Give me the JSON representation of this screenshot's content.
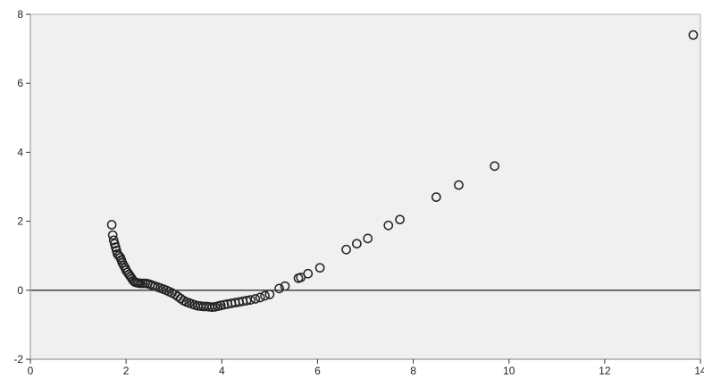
{
  "chart_data": {
    "type": "scatter",
    "title": "",
    "xlabel": "",
    "ylabel": "",
    "xlim": [
      0,
      14
    ],
    "ylim": [
      -2,
      8
    ],
    "x_ticks": [
      {
        "value": 0,
        "label": "0"
      },
      {
        "value": 2,
        "label": "2"
      },
      {
        "value": 4,
        "label": "4"
      },
      {
        "value": 6,
        "label": "6"
      },
      {
        "value": 8,
        "label": "8"
      },
      {
        "value": 10,
        "label": "10"
      },
      {
        "value": 12,
        "label": "12"
      },
      {
        "value": 14,
        "label": "14"
      }
    ],
    "y_ticks": [
      {
        "value": -2,
        "label": "-2"
      },
      {
        "value": 0,
        "label": "0"
      },
      {
        "value": 2,
        "label": "2"
      },
      {
        "value": 4,
        "label": "4"
      },
      {
        "value": 6,
        "label": "6"
      },
      {
        "value": 8,
        "label": "8"
      }
    ],
    "reference_line_y": 0,
    "grid": false,
    "marker": "open-circle",
    "colors": {
      "plot_background": "#f0f0f0",
      "marker_stroke": "#222222",
      "axis": "#333333",
      "reference_line": "#333333"
    },
    "points": [
      {
        "x": 1.7,
        "y": 1.9
      },
      {
        "x": 1.72,
        "y": 1.6
      },
      {
        "x": 1.74,
        "y": 1.45
      },
      {
        "x": 1.76,
        "y": 1.35
      },
      {
        "x": 1.78,
        "y": 1.25
      },
      {
        "x": 1.8,
        "y": 1.15
      },
      {
        "x": 1.82,
        "y": 1.05
      },
      {
        "x": 1.85,
        "y": 1.0
      },
      {
        "x": 1.88,
        "y": 0.95
      },
      {
        "x": 1.9,
        "y": 0.88
      },
      {
        "x": 1.92,
        "y": 0.8
      },
      {
        "x": 1.95,
        "y": 0.72
      },
      {
        "x": 1.98,
        "y": 0.65
      },
      {
        "x": 2.0,
        "y": 0.58
      },
      {
        "x": 2.03,
        "y": 0.52
      },
      {
        "x": 2.06,
        "y": 0.46
      },
      {
        "x": 2.09,
        "y": 0.4
      },
      {
        "x": 2.12,
        "y": 0.34
      },
      {
        "x": 2.15,
        "y": 0.28
      },
      {
        "x": 2.18,
        "y": 0.24
      },
      {
        "x": 2.22,
        "y": 0.22
      },
      {
        "x": 2.26,
        "y": 0.21
      },
      {
        "x": 2.3,
        "y": 0.2
      },
      {
        "x": 2.35,
        "y": 0.2
      },
      {
        "x": 2.4,
        "y": 0.2
      },
      {
        "x": 2.45,
        "y": 0.19
      },
      {
        "x": 2.5,
        "y": 0.17
      },
      {
        "x": 2.55,
        "y": 0.14
      },
      {
        "x": 2.6,
        "y": 0.12
      },
      {
        "x": 2.66,
        "y": 0.09
      },
      {
        "x": 2.72,
        "y": 0.06
      },
      {
        "x": 2.78,
        "y": 0.03
      },
      {
        "x": 2.84,
        "y": 0.0
      },
      {
        "x": 2.9,
        "y": -0.04
      },
      {
        "x": 2.96,
        "y": -0.08
      },
      {
        "x": 3.02,
        "y": -0.12
      },
      {
        "x": 3.08,
        "y": -0.18
      },
      {
        "x": 3.14,
        "y": -0.24
      },
      {
        "x": 3.2,
        "y": -0.3
      },
      {
        "x": 3.26,
        "y": -0.34
      },
      {
        "x": 3.32,
        "y": -0.37
      },
      {
        "x": 3.38,
        "y": -0.4
      },
      {
        "x": 3.44,
        "y": -0.43
      },
      {
        "x": 3.5,
        "y": -0.45
      },
      {
        "x": 3.56,
        "y": -0.46
      },
      {
        "x": 3.62,
        "y": -0.47
      },
      {
        "x": 3.68,
        "y": -0.47
      },
      {
        "x": 3.74,
        "y": -0.48
      },
      {
        "x": 3.8,
        "y": -0.49
      },
      {
        "x": 3.86,
        "y": -0.48
      },
      {
        "x": 3.92,
        "y": -0.46
      },
      {
        "x": 3.98,
        "y": -0.44
      },
      {
        "x": 4.05,
        "y": -0.42
      },
      {
        "x": 4.12,
        "y": -0.4
      },
      {
        "x": 4.2,
        "y": -0.38
      },
      {
        "x": 4.28,
        "y": -0.36
      },
      {
        "x": 4.36,
        "y": -0.34
      },
      {
        "x": 4.44,
        "y": -0.32
      },
      {
        "x": 4.52,
        "y": -0.3
      },
      {
        "x": 4.6,
        "y": -0.28
      },
      {
        "x": 4.7,
        "y": -0.25
      },
      {
        "x": 4.8,
        "y": -0.21
      },
      {
        "x": 4.9,
        "y": -0.16
      },
      {
        "x": 5.0,
        "y": -0.12
      },
      {
        "x": 5.2,
        "y": 0.05
      },
      {
        "x": 5.32,
        "y": 0.12
      },
      {
        "x": 5.6,
        "y": 0.35
      },
      {
        "x": 5.65,
        "y": 0.37
      },
      {
        "x": 5.8,
        "y": 0.48
      },
      {
        "x": 6.05,
        "y": 0.65
      },
      {
        "x": 6.6,
        "y": 1.18
      },
      {
        "x": 6.82,
        "y": 1.35
      },
      {
        "x": 7.05,
        "y": 1.5
      },
      {
        "x": 7.48,
        "y": 1.88
      },
      {
        "x": 7.72,
        "y": 2.05
      },
      {
        "x": 8.48,
        "y": 2.7
      },
      {
        "x": 8.95,
        "y": 3.05
      },
      {
        "x": 9.7,
        "y": 3.6
      },
      {
        "x": 13.85,
        "y": 7.4
      }
    ]
  }
}
